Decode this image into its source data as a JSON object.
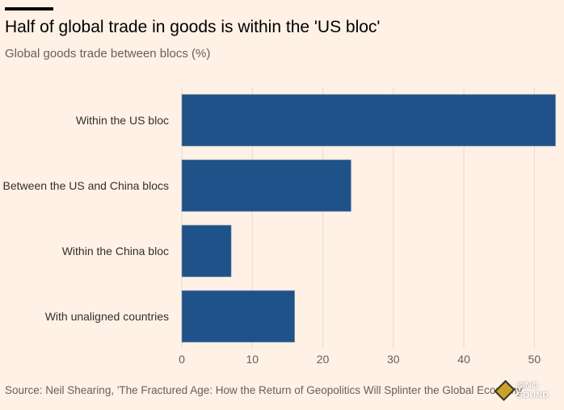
{
  "title": "Half of global trade in goods is within the 'US bloc'",
  "subtitle": "Global goods trade between blocs (%)",
  "source": "Source: Neil Shearing, 'The Fractured Age: How the Return of Geopolitics Will Splinter the Global Economy'",
  "watermark": "SINO SOUND",
  "colors": {
    "bar": "#1f5289",
    "grid": "#e6d9ce",
    "background": "#fff1e5"
  },
  "chart_data": {
    "type": "bar",
    "orientation": "horizontal",
    "title": "Half of global trade in goods is within the 'US bloc'",
    "ylabel": "",
    "xlabel": "",
    "categories": [
      "Within the US bloc",
      "Between the US and China blocs",
      "Within the China bloc",
      "With unaligned countries"
    ],
    "values": [
      53,
      24,
      7,
      16
    ],
    "xlim": [
      0,
      54.2
    ],
    "xticks": [
      0,
      10,
      20,
      30,
      40,
      50
    ],
    "grid": true
  }
}
